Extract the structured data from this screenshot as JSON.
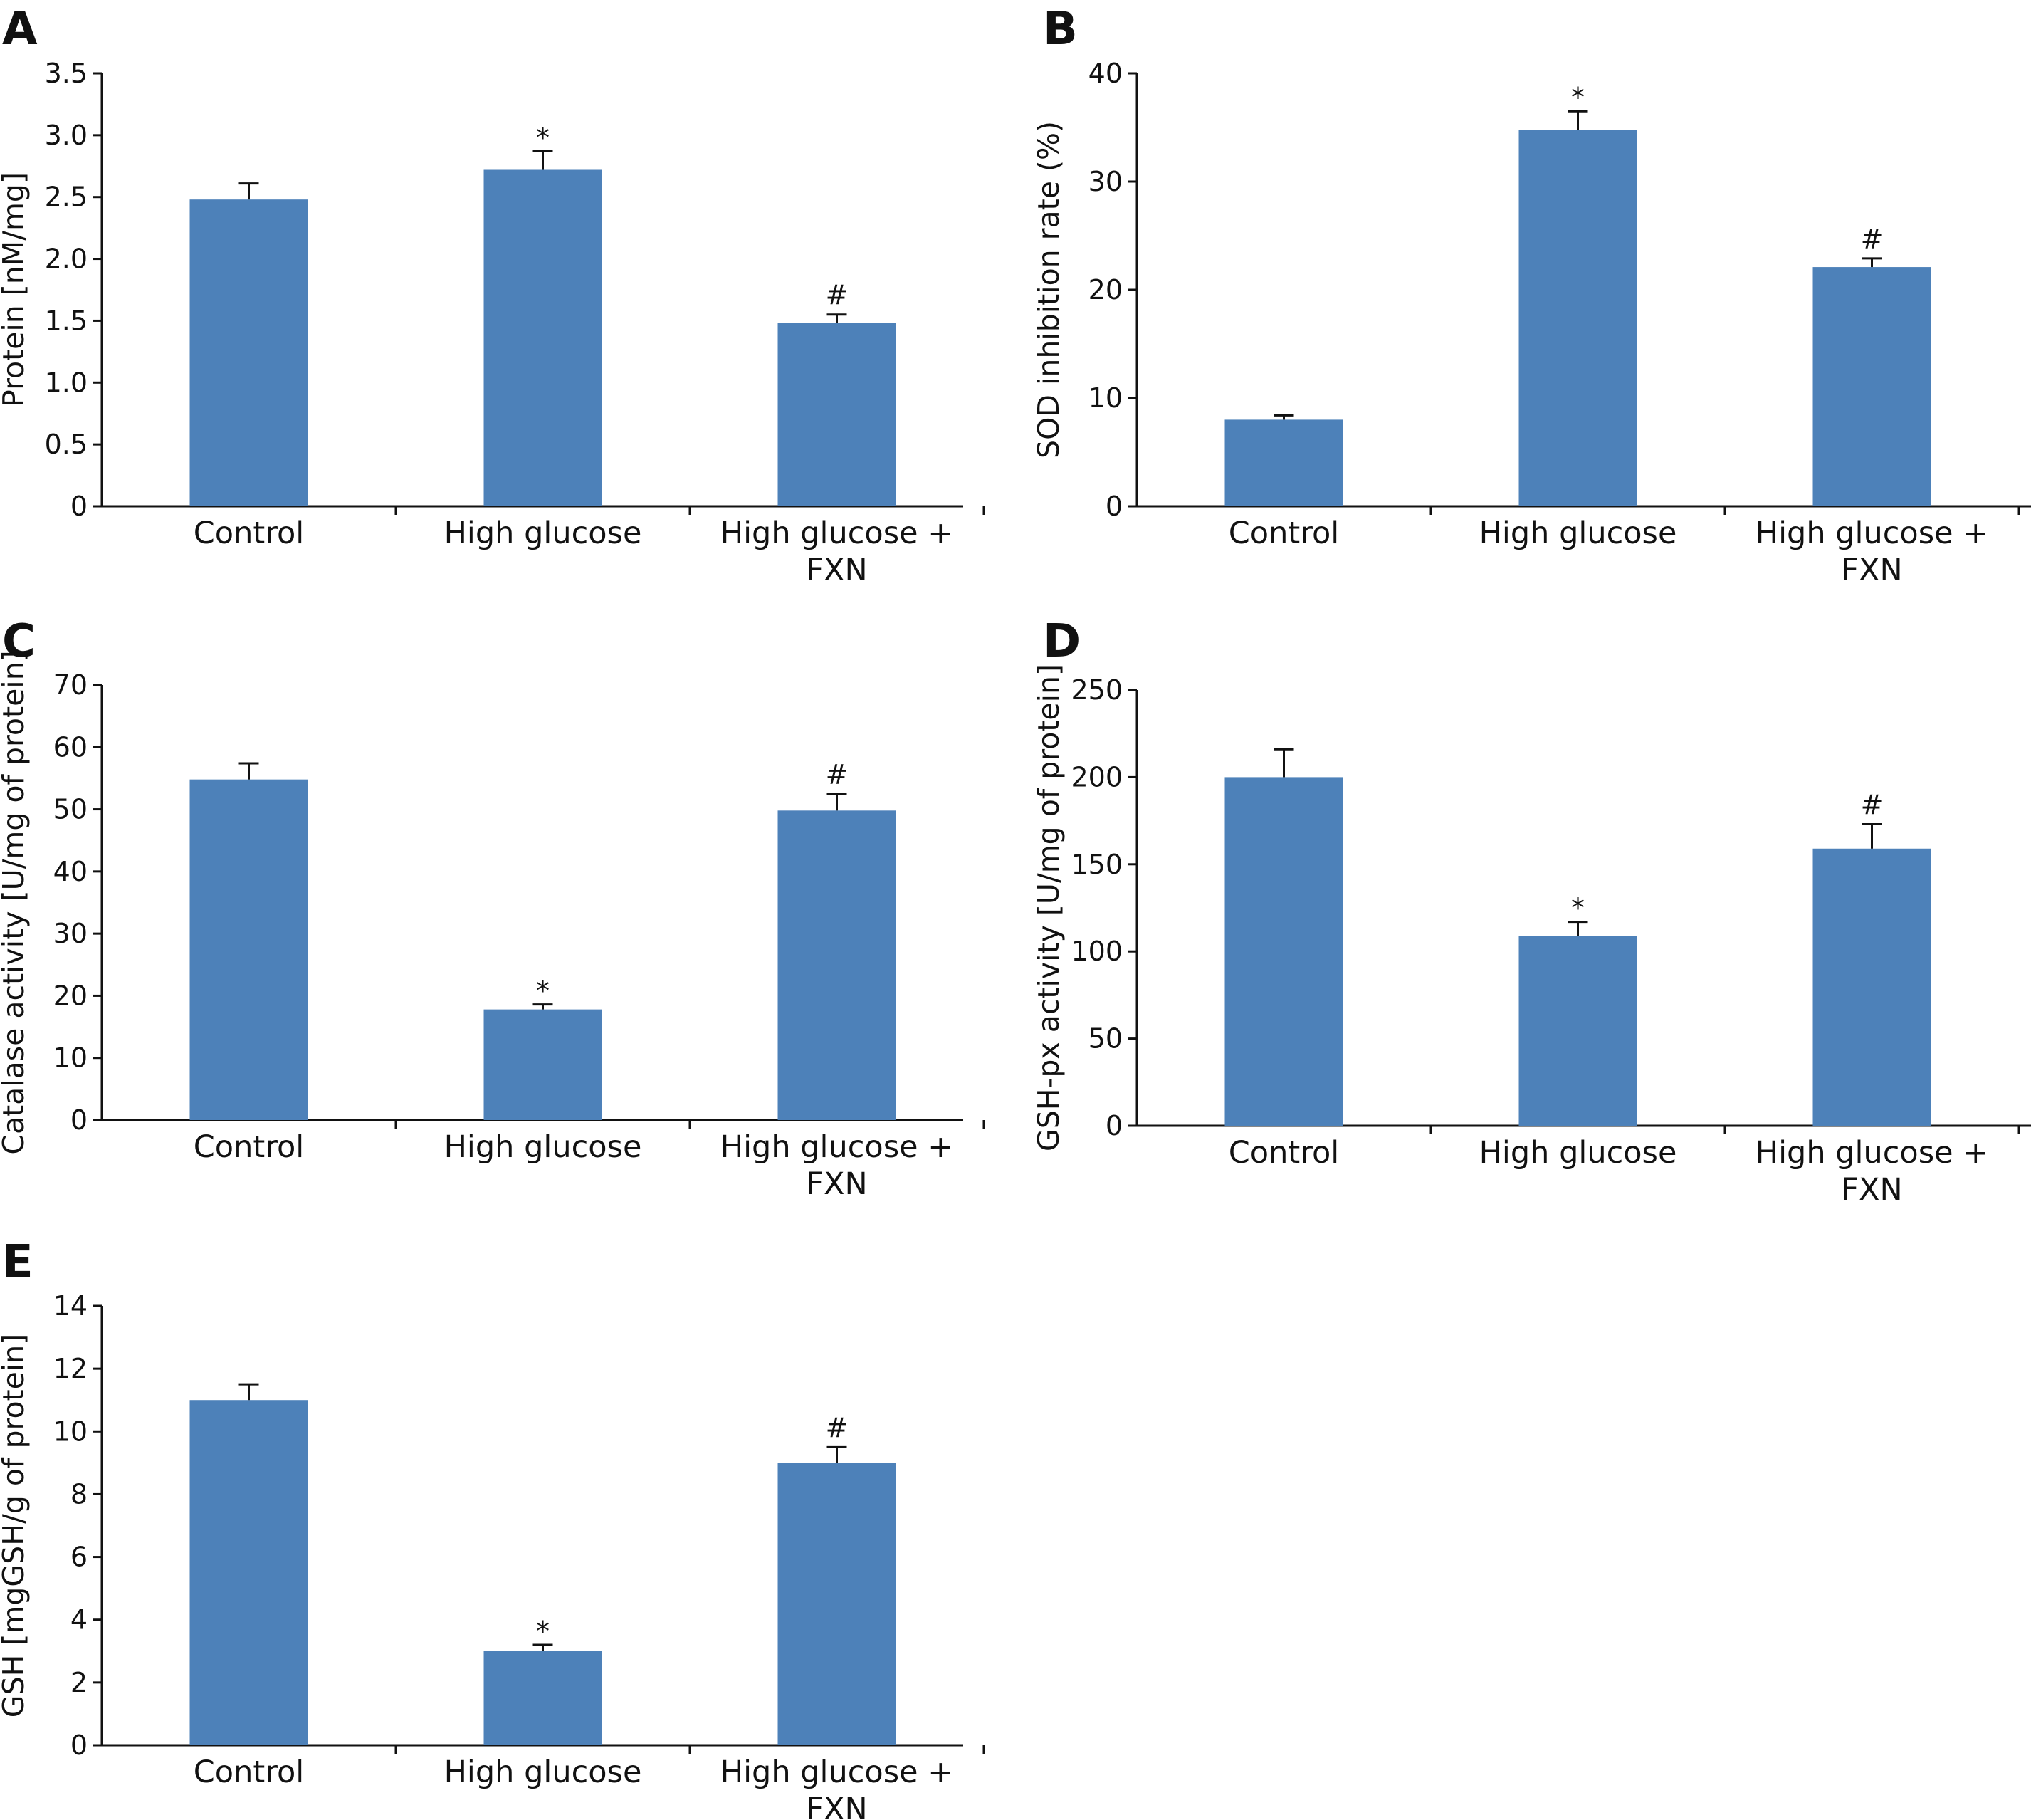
{
  "figure": {
    "bar_color": "#4d81b9",
    "axis_color": "#111111"
  },
  "chart_data": [
    {
      "panel": "A",
      "type": "bar",
      "categories": [
        [
          "Control"
        ],
        [
          "High glucose"
        ],
        [
          "High glucose +",
          "FXN"
        ]
      ],
      "values": [
        2.48,
        2.72,
        1.48
      ],
      "errors": [
        0.13,
        0.15,
        0.07
      ],
      "markers": [
        "",
        "*",
        "#"
      ],
      "ylabel": "Protein [nM/mg]",
      "ylim": [
        0,
        3.5
      ],
      "yticks": [
        0,
        0.5,
        1.0,
        1.5,
        2.0,
        2.5,
        3.0,
        3.5
      ],
      "ytick_labels": [
        "0",
        "0.5",
        "1.0",
        "1.5",
        "2.0",
        "2.5",
        "3.0",
        "3.5"
      ]
    },
    {
      "panel": "B",
      "type": "bar",
      "categories": [
        [
          "Control"
        ],
        [
          "High glucose"
        ],
        [
          "High glucose +",
          "FXN"
        ]
      ],
      "values": [
        8.0,
        34.8,
        22.1
      ],
      "errors": [
        0.4,
        1.7,
        0.8
      ],
      "markers": [
        "",
        "*",
        "#"
      ],
      "ylabel": "SOD inhibition rate (%)",
      "ylim": [
        0,
        40
      ],
      "yticks": [
        0,
        10,
        20,
        30,
        40
      ],
      "ytick_labels": [
        "0",
        "10",
        "20",
        "30",
        "40"
      ]
    },
    {
      "panel": "C",
      "type": "bar",
      "categories": [
        [
          "Control"
        ],
        [
          "High glucose"
        ],
        [
          "High glucose +",
          "FXN"
        ]
      ],
      "values": [
        54.8,
        17.8,
        49.8
      ],
      "errors": [
        2.6,
        0.8,
        2.7
      ],
      "markers": [
        "",
        "*",
        "#"
      ],
      "ylabel": "Catalase activity [U/mg of protein]",
      "ylim": [
        0,
        70
      ],
      "yticks": [
        0,
        10,
        20,
        30,
        40,
        50,
        60,
        70
      ],
      "ytick_labels": [
        "0",
        "10",
        "20",
        "30",
        "40",
        "50",
        "60",
        "70"
      ]
    },
    {
      "panel": "D",
      "type": "bar",
      "categories": [
        [
          "Control"
        ],
        [
          "High glucose"
        ],
        [
          "High glucose +",
          "FXN"
        ]
      ],
      "values": [
        200,
        109,
        159
      ],
      "errors": [
        16,
        8,
        14
      ],
      "markers": [
        "",
        "*",
        "#"
      ],
      "ylabel": "GSH-px activity [U/mg of protein]",
      "ylim": [
        0,
        250
      ],
      "yticks": [
        0,
        50,
        100,
        150,
        200,
        250
      ],
      "ytick_labels": [
        "0",
        "50",
        "100",
        "150",
        "200",
        "250"
      ]
    },
    {
      "panel": "E",
      "type": "bar",
      "categories": [
        [
          "Control"
        ],
        [
          "High glucose"
        ],
        [
          "High glucose +",
          "FXN"
        ]
      ],
      "values": [
        11.0,
        3.0,
        9.0
      ],
      "errors": [
        0.5,
        0.2,
        0.5
      ],
      "markers": [
        "",
        "*",
        "#"
      ],
      "ylabel": "GSH [mgGSH/g of protein]",
      "ylim": [
        0,
        14
      ],
      "yticks": [
        0,
        2,
        4,
        6,
        8,
        10,
        12,
        14
      ],
      "ytick_labels": [
        "0",
        "2",
        "4",
        "6",
        "8",
        "10",
        "12",
        "14"
      ]
    }
  ]
}
